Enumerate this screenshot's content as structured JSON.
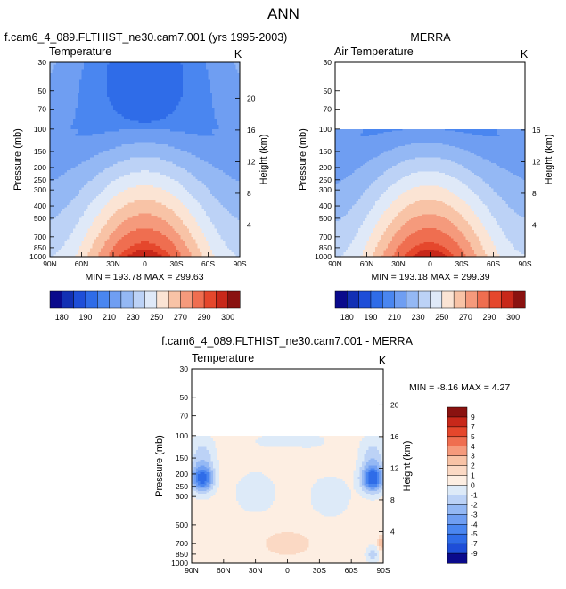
{
  "title": "ANN",
  "chart_data": [
    {
      "type": "heatmap",
      "name": "model",
      "title": "f.cam6_4_089.FLTHIST_ne30.cam7.001 (yrs 1995-2003)",
      "variable": "Temperature",
      "units": "K",
      "ylabel": "Pressure (mb)",
      "ylabel_right": "Height (km)",
      "x_ticks": [
        "90N",
        "60N",
        "30N",
        "0",
        "30S",
        "60S",
        "90S"
      ],
      "y_ticks": [
        30,
        50,
        70,
        100,
        150,
        200,
        250,
        300,
        400,
        500,
        700,
        850,
        1000
      ],
      "height_ticks": [
        20,
        16,
        12,
        8,
        4
      ],
      "stats": "MIN = 193.78   MAX = 299.63",
      "data_top_mb": 30
    },
    {
      "type": "heatmap",
      "name": "obs",
      "title": "MERRA",
      "variable": "Air Temperature",
      "units": "K",
      "ylabel": "Pressure (mb)",
      "ylabel_right": "Height (km)",
      "x_ticks": [
        "90N",
        "60N",
        "30N",
        "0",
        "30S",
        "60S",
        "90S"
      ],
      "y_ticks": [
        30,
        50,
        70,
        100,
        150,
        200,
        250,
        300,
        400,
        500,
        700,
        850,
        1000
      ],
      "height_ticks": [
        16,
        12,
        8,
        4
      ],
      "stats": "MIN = 193.18   MAX = 299.39",
      "data_top_mb": 100
    },
    {
      "type": "heatmap",
      "name": "diff",
      "title": "f.cam6_4_089.FLTHIST_ne30.cam7.001 - MERRA",
      "variable": "Temperature",
      "units": "K",
      "ylabel": "Pressure (mb)",
      "ylabel_right": "Height (km)",
      "x_ticks": [
        "90N",
        "60N",
        "30N",
        "0",
        "30S",
        "60S",
        "90S"
      ],
      "y_ticks": [
        30,
        50,
        70,
        100,
        150,
        200,
        250,
        300,
        500,
        700,
        850,
        1000
      ],
      "height_ticks": [
        20,
        16,
        12,
        8,
        4
      ],
      "stats": "MIN =  -8.16  MAX =   4.27",
      "data_top_mb": 100
    }
  ],
  "colorbar_abs": {
    "labels": [
      "180",
      "190",
      "210",
      "230",
      "250",
      "270",
      "290",
      "300"
    ],
    "colors": [
      "#0a0a8c",
      "#1230b4",
      "#1e4ed8",
      "#2f6ce8",
      "#4a86f0",
      "#6f9ef2",
      "#94b8f4",
      "#bcd2f6",
      "#dfe9f8",
      "#fbe4d4",
      "#f8c3a6",
      "#f59a7c",
      "#ef6e50",
      "#e5472c",
      "#c8281a",
      "#8a1210"
    ]
  },
  "colorbar_diff": {
    "labels": [
      "9",
      "7",
      "5",
      "4",
      "3",
      "2",
      "1",
      "0",
      "-1",
      "-2",
      "-3",
      "-4",
      "-5",
      "-7",
      "-9"
    ],
    "colors": [
      "#8a1210",
      "#c8281a",
      "#e5472c",
      "#ef6e50",
      "#f59a7c",
      "#f8c3a6",
      "#fbd9c4",
      "#fdeee2",
      "#ddeaf8",
      "#bcd2f6",
      "#94b8f4",
      "#6f9ef2",
      "#4a86f0",
      "#2f6ce8",
      "#1e4ed8",
      "#0a0a8c"
    ]
  }
}
